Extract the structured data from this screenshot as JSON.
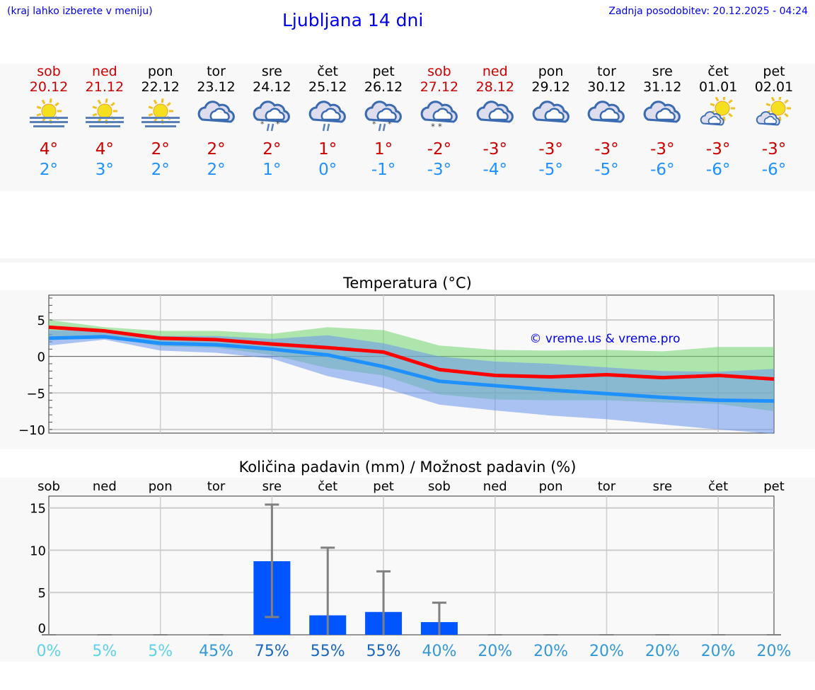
{
  "header": {
    "hint": "(kraj lahko izberete v meniju)",
    "title": "Ljubljana 14 dni",
    "updated": "Zadnja posodobitev: 20.12.2025 - 04:24"
  },
  "colors": {
    "weekend": "#cc0000",
    "weekday": "#000000",
    "tmax": "#cc0000",
    "tmin": "#1e90ff"
  },
  "days": [
    {
      "name": "sob",
      "date": "20.12",
      "weekend": true,
      "icon": "sun-fog-icon",
      "tmax": "4°",
      "tmin": "2°"
    },
    {
      "name": "ned",
      "date": "21.12",
      "weekend": true,
      "icon": "sun-fog-icon",
      "tmax": "4°",
      "tmin": "3°"
    },
    {
      "name": "pon",
      "date": "22.12",
      "weekend": false,
      "icon": "sun-fog-icon",
      "tmax": "2°",
      "tmin": "2°"
    },
    {
      "name": "tor",
      "date": "23.12",
      "weekend": false,
      "icon": "cloudy-icon",
      "tmax": "2°",
      "tmin": "2°"
    },
    {
      "name": "sre",
      "date": "24.12",
      "weekend": false,
      "icon": "cloud-sleet-icon",
      "tmax": "2°",
      "tmin": "1°"
    },
    {
      "name": "čet",
      "date": "25.12",
      "weekend": false,
      "icon": "cloud-rain-icon",
      "tmax": "1°",
      "tmin": "0°"
    },
    {
      "name": "pet",
      "date": "26.12",
      "weekend": false,
      "icon": "cloud-sleet-icon",
      "tmax": "1°",
      "tmin": "-1°"
    },
    {
      "name": "sob",
      "date": "27.12",
      "weekend": true,
      "icon": "cloud-snow-icon",
      "tmax": "-2°",
      "tmin": "-3°"
    },
    {
      "name": "ned",
      "date": "28.12",
      "weekend": true,
      "icon": "cloudy-icon",
      "tmax": "-3°",
      "tmin": "-4°"
    },
    {
      "name": "pon",
      "date": "29.12",
      "weekend": false,
      "icon": "cloudy-icon",
      "tmax": "-3°",
      "tmin": "-5°"
    },
    {
      "name": "tor",
      "date": "30.12",
      "weekend": false,
      "icon": "cloudy-icon",
      "tmax": "-3°",
      "tmin": "-5°"
    },
    {
      "name": "sre",
      "date": "31.12",
      "weekend": false,
      "icon": "cloudy-icon",
      "tmax": "-3°",
      "tmin": "-6°"
    },
    {
      "name": "čet",
      "date": "01.01",
      "weekend": false,
      "icon": "partly-cloudy-icon",
      "tmax": "-3°",
      "tmin": "-6°"
    },
    {
      "name": "pet",
      "date": "02.01",
      "weekend": false,
      "icon": "partly-cloudy-icon",
      "tmax": "-3°",
      "tmin": "-6°"
    }
  ],
  "chart_data": [
    {
      "type": "line",
      "title": "Temperatura (°C)",
      "categories": [
        "20.12",
        "21.12",
        "22.12",
        "23.12",
        "24.12",
        "25.12",
        "26.12",
        "27.12",
        "28.12",
        "29.12",
        "30.12",
        "31.12",
        "01.01",
        "02.01"
      ],
      "ylim": [
        -10.5,
        8.4
      ],
      "yticks": [
        5,
        0,
        -5,
        -10
      ],
      "grid": true,
      "watermark": "© vreme.us & vreme.pro",
      "series": [
        {
          "color": "#ff0000",
          "values": [
            4.0,
            3.5,
            2.5,
            2.3,
            1.7,
            1.2,
            0.6,
            -1.8,
            -2.6,
            -2.8,
            -2.5,
            -2.9,
            -2.6,
            -3.1
          ]
        },
        {
          "color": "#1e90ff",
          "values": [
            2.5,
            2.7,
            1.8,
            1.6,
            1.0,
            0.2,
            -1.4,
            -3.4,
            -4.0,
            -4.6,
            -5.1,
            -5.6,
            -6.0,
            -6.1
          ]
        }
      ],
      "bands": [
        {
          "color": "#6fd66f",
          "upper": [
            5.0,
            4.0,
            3.5,
            3.5,
            3.1,
            4.0,
            3.6,
            1.5,
            0.9,
            0.8,
            0.9,
            0.7,
            1.3,
            1.3
          ],
          "lower": [
            2.2,
            2.7,
            1.4,
            1.2,
            0.2,
            -1.6,
            -2.6,
            -5.2,
            -5.9,
            -6.0,
            -6.0,
            -6.3,
            -6.5,
            -7.5
          ]
        },
        {
          "color": "#6a96ec",
          "upper": [
            3.6,
            3.5,
            2.8,
            2.8,
            2.4,
            2.9,
            1.8,
            0.0,
            -0.7,
            -1.0,
            -1.5,
            -2.0,
            -2.1,
            -1.7
          ],
          "lower": [
            1.5,
            2.3,
            0.8,
            0.5,
            -0.3,
            -2.7,
            -4.3,
            -6.6,
            -7.4,
            -8.1,
            -8.6,
            -9.3,
            -10.0,
            -10.6
          ]
        }
      ]
    },
    {
      "type": "bar",
      "title": "Količina padavin (mm) / Možnost padavin (%)",
      "categories": [
        "sob",
        "ned",
        "pon",
        "tor",
        "sre",
        "čet",
        "pet",
        "sob",
        "ned",
        "pon",
        "tor",
        "sre",
        "čet",
        "pet"
      ],
      "values": [
        0,
        0,
        0,
        0,
        8.7,
        2.3,
        2.7,
        1.5,
        0,
        0,
        0,
        0,
        0,
        0
      ],
      "error_low": [
        0,
        0,
        0,
        0,
        2.1,
        0,
        0,
        0,
        0,
        0,
        0,
        0,
        0,
        0
      ],
      "error_high": [
        0,
        0,
        0,
        0,
        15.4,
        10.3,
        7.5,
        3.8,
        0,
        0,
        0,
        0,
        0,
        0
      ],
      "ylim": [
        0,
        16.4
      ],
      "yticks": [
        15,
        10,
        5,
        0
      ],
      "grid": true,
      "bar_color": "#0055ff",
      "probability": [
        {
          "label": "0%",
          "color": "#5bd3e8"
        },
        {
          "label": "5%",
          "color": "#5bd3e8"
        },
        {
          "label": "5%",
          "color": "#5bd3e8"
        },
        {
          "label": "45%",
          "color": "#3399d6"
        },
        {
          "label": "75%",
          "color": "#1a66bb"
        },
        {
          "label": "55%",
          "color": "#1a66bb"
        },
        {
          "label": "55%",
          "color": "#1a66bb"
        },
        {
          "label": "40%",
          "color": "#3399d6"
        },
        {
          "label": "20%",
          "color": "#3399d6"
        },
        {
          "label": "20%",
          "color": "#3399d6"
        },
        {
          "label": "20%",
          "color": "#3399d6"
        },
        {
          "label": "20%",
          "color": "#3399d6"
        },
        {
          "label": "20%",
          "color": "#3399d6"
        },
        {
          "label": "20%",
          "color": "#3399d6"
        }
      ]
    }
  ]
}
